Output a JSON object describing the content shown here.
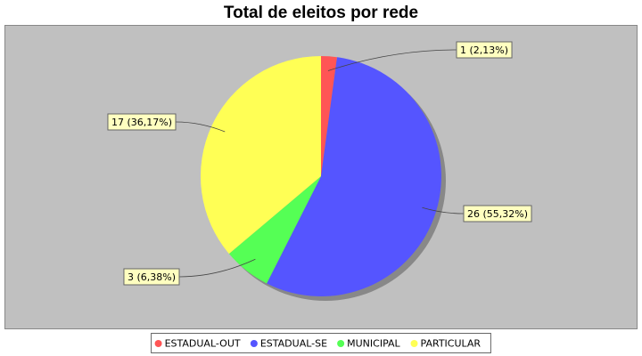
{
  "chart_data": {
    "type": "pie",
    "title": "Total de eleitos por rede",
    "categories": [
      "ESTADUAL-OUT",
      "ESTADUAL-SE",
      "MUNICIPAL",
      "PARTICULAR"
    ],
    "values": [
      1,
      26,
      3,
      17
    ],
    "value_labels": [
      "1 (2,13%)",
      "26 (55,32%)",
      "3 (6,38%)",
      "17 (36,17%)"
    ],
    "colors": [
      "#ff5555",
      "#5555ff",
      "#55ff55",
      "#ffff55"
    ],
    "legend": "bottom"
  }
}
